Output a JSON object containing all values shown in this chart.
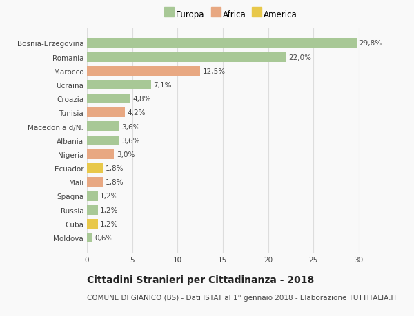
{
  "categories": [
    "Moldova",
    "Cuba",
    "Russia",
    "Spagna",
    "Mali",
    "Ecuador",
    "Nigeria",
    "Albania",
    "Macedonia d/N.",
    "Tunisia",
    "Croazia",
    "Ucraina",
    "Marocco",
    "Romania",
    "Bosnia-Erzegovina"
  ],
  "values": [
    0.6,
    1.2,
    1.2,
    1.2,
    1.8,
    1.8,
    3.0,
    3.6,
    3.6,
    4.2,
    4.8,
    7.1,
    12.5,
    22.0,
    29.8
  ],
  "labels": [
    "0,6%",
    "1,2%",
    "1,2%",
    "1,2%",
    "1,8%",
    "1,8%",
    "3,0%",
    "3,6%",
    "3,6%",
    "4,2%",
    "4,8%",
    "7,1%",
    "12,5%",
    "22,0%",
    "29,8%"
  ],
  "continents": [
    "Europa",
    "America",
    "Europa",
    "Europa",
    "Africa",
    "America",
    "Africa",
    "Europa",
    "Europa",
    "Africa",
    "Europa",
    "Europa",
    "Africa",
    "Europa",
    "Europa"
  ],
  "continent_colors": {
    "Europa": "#a8c896",
    "Africa": "#e8a882",
    "America": "#e8c84a"
  },
  "legend_entries": [
    "Europa",
    "Africa",
    "America"
  ],
  "legend_colors": [
    "#a8c896",
    "#e8a882",
    "#e8c84a"
  ],
  "title": "Cittadini Stranieri per Cittadinanza - 2018",
  "subtitle": "COMUNE DI GIANICO (BS) - Dati ISTAT al 1° gennaio 2018 - Elaborazione TUTTITALIA.IT",
  "xlim": [
    0,
    32
  ],
  "xticks": [
    0,
    5,
    10,
    15,
    20,
    25,
    30
  ],
  "background_color": "#f9f9f9",
  "grid_color": "#dddddd",
  "bar_height": 0.7,
  "title_fontsize": 10,
  "subtitle_fontsize": 7.5,
  "label_fontsize": 7.5,
  "tick_fontsize": 7.5,
  "legend_fontsize": 8.5
}
